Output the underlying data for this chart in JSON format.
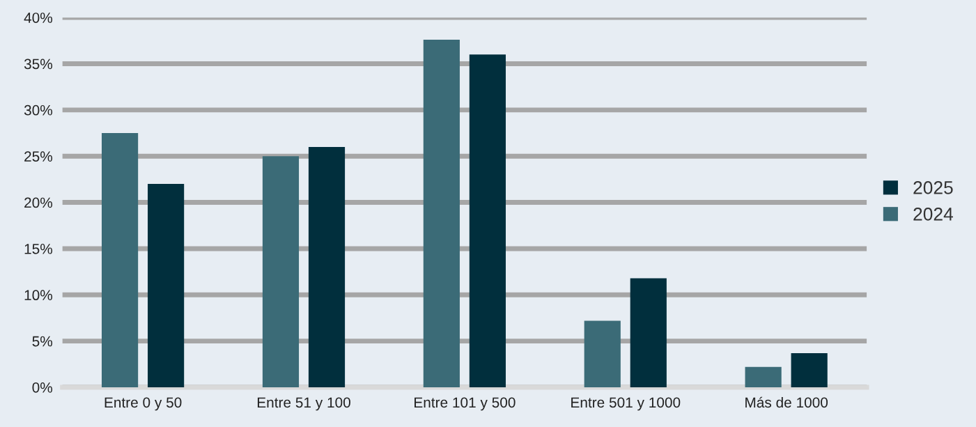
{
  "chart_data": {
    "type": "bar",
    "categories": [
      "Entre 0 y 50",
      "Entre 51 y 100",
      "Entre 101 y 500",
      "Entre 501 y 1000",
      "Más de 1000"
    ],
    "series": [
      {
        "name": "2024",
        "color": "#3b6b77",
        "values": [
          27.5,
          25,
          37.6,
          7.2,
          2.2
        ]
      },
      {
        "name": "2025",
        "color": "#012f3d",
        "values": [
          22,
          26,
          36,
          11.8,
          3.7
        ]
      }
    ],
    "ylim": [
      0,
      40
    ],
    "yticks": [
      {
        "value": 0,
        "label": "0%"
      },
      {
        "value": 5,
        "label": "5%"
      },
      {
        "value": 10,
        "label": "10%"
      },
      {
        "value": 15,
        "label": "15%"
      },
      {
        "value": 20,
        "label": "20%"
      },
      {
        "value": 25,
        "label": "25%"
      },
      {
        "value": 30,
        "label": "30%"
      },
      {
        "value": 35,
        "label": "35%"
      },
      {
        "value": 40,
        "label": "40%"
      }
    ],
    "grid": "y",
    "legend": "right"
  }
}
